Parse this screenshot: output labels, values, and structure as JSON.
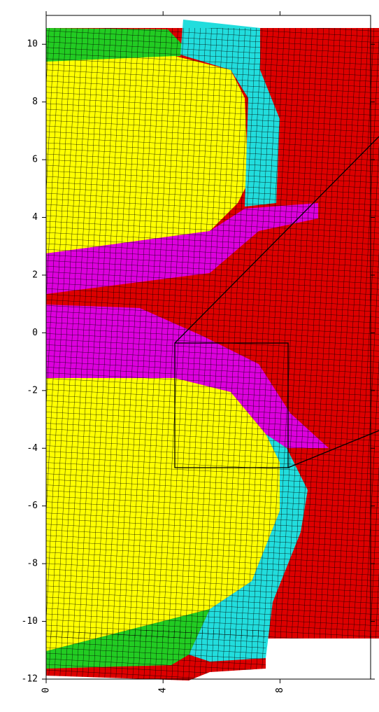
{
  "chart_data": {
    "type": "mesh",
    "xlim": [
      0,
      11.1
    ],
    "ylim": [
      -12,
      11
    ],
    "xticks": [
      0,
      4,
      8
    ],
    "yticks": [
      10,
      8,
      6,
      4,
      2,
      0,
      -2,
      -4,
      -6,
      -8,
      -10,
      -12
    ]
  }
}
